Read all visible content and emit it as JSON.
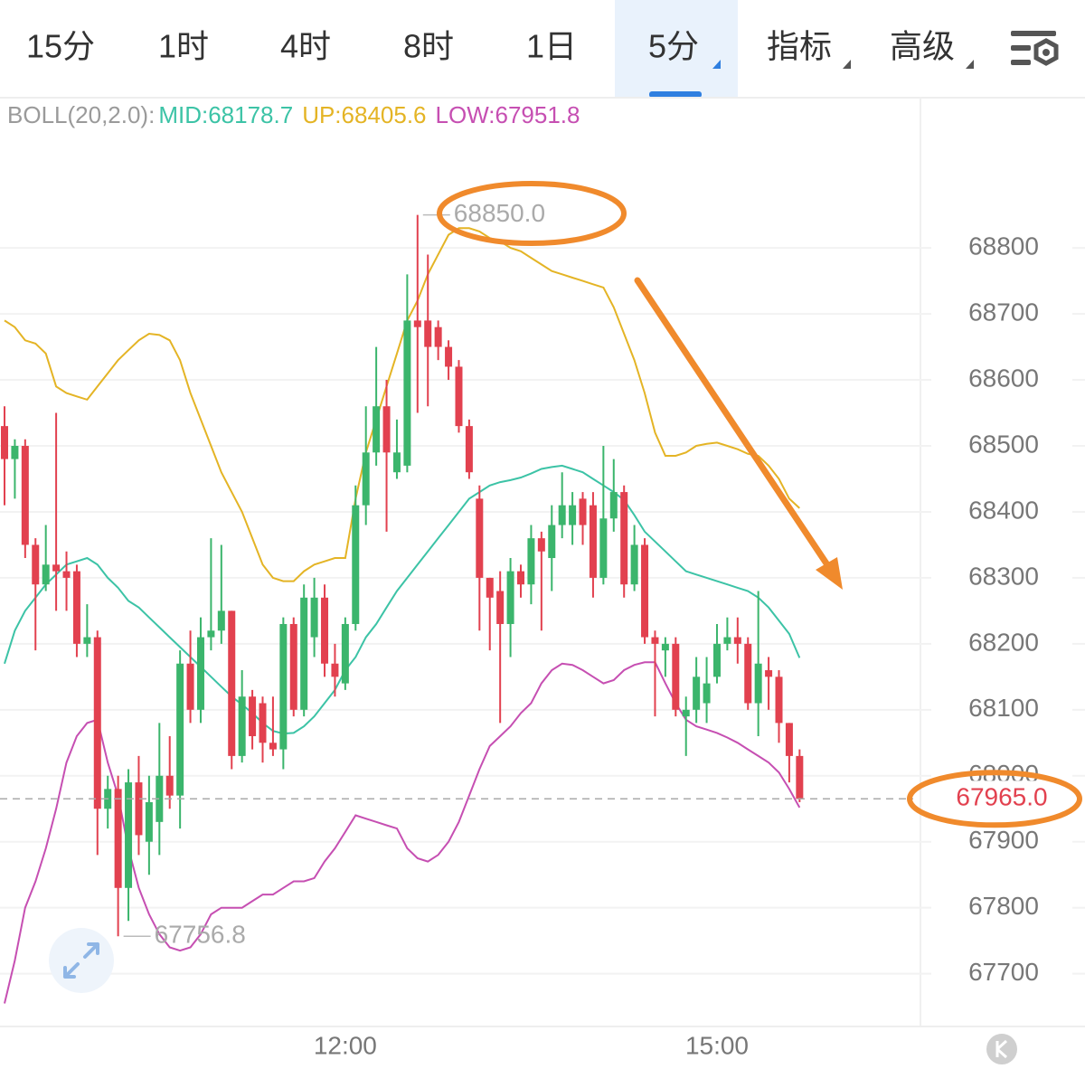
{
  "tabs": [
    "15分",
    "1时",
    "4时",
    "8时",
    "1日",
    "5分",
    "指标",
    "高级"
  ],
  "active_tab": 5,
  "chart_data": {
    "type": "candlestick",
    "categories": [
      null,
      null,
      null,
      null,
      null,
      null,
      null,
      null,
      null,
      null,
      null,
      null,
      null,
      null,
      null,
      null,
      null,
      null,
      null,
      null,
      null,
      null,
      null,
      null,
      null,
      null,
      null,
      null,
      null,
      null,
      null,
      null,
      null,
      "12:00",
      null,
      null,
      null,
      null,
      null,
      null,
      null,
      null,
      null,
      null,
      null,
      null,
      null,
      null,
      null,
      null,
      null,
      null,
      null,
      null,
      null,
      null,
      null,
      null,
      null,
      null,
      null,
      null,
      null,
      null,
      null,
      null,
      null,
      null,
      null,
      "15:00",
      null,
      null,
      null,
      null,
      null,
      null,
      null,
      null
    ],
    "open": [
      68530,
      68480,
      68500,
      68350,
      68290,
      68320,
      68310,
      68310,
      68200,
      68210,
      67950,
      67980,
      67830,
      67990,
      67900,
      67930,
      68000,
      67970,
      68170,
      68100,
      68210,
      68220,
      68250,
      68030,
      68120,
      68110,
      68050,
      68040,
      68230,
      68100,
      68210,
      68270,
      68170,
      68140,
      68230,
      68410,
      68490,
      68560,
      68460,
      68470,
      68690,
      68690,
      68680,
      68650,
      68620,
      68530,
      68420,
      68300,
      68280,
      68230,
      68310,
      68290,
      68360,
      68330,
      68380,
      68380,
      68420,
      68410,
      68300,
      68390,
      68430,
      68290,
      68350,
      68210,
      68190,
      68200,
      68090,
      68100,
      68110,
      68150,
      68200,
      68210,
      68200,
      68110,
      68160,
      68150,
      68080,
      68030
    ],
    "high": [
      68560,
      68510,
      68510,
      68360,
      68380,
      68550,
      68340,
      68320,
      68260,
      68220,
      68000,
      68000,
      68010,
      68030,
      68000,
      68080,
      68060,
      68190,
      68220,
      68240,
      68360,
      68350,
      68250,
      68160,
      68130,
      68120,
      68120,
      68240,
      68240,
      68290,
      68300,
      68290,
      68200,
      68240,
      68440,
      68560,
      68650,
      68600,
      68540,
      68760,
      68850,
      68790,
      68690,
      68660,
      68630,
      68540,
      68440,
      68300,
      68310,
      68330,
      68320,
      68380,
      68370,
      68410,
      68460,
      68430,
      68430,
      68430,
      68500,
      68480,
      68440,
      68380,
      68360,
      68220,
      68210,
      68210,
      68120,
      68180,
      68180,
      68230,
      68240,
      68240,
      68210,
      68280,
      68180,
      68160,
      68080,
      68040
    ],
    "low": [
      68410,
      68420,
      68330,
      68190,
      68280,
      68250,
      68250,
      68180,
      68180,
      67880,
      67920,
      67756.8,
      67780,
      67880,
      67850,
      67880,
      67950,
      67920,
      68080,
      68080,
      68190,
      68200,
      68010,
      68020,
      68040,
      68020,
      68030,
      68010,
      68090,
      68090,
      68180,
      68150,
      68120,
      68130,
      68220,
      68380,
      68470,
      68370,
      68450,
      68460,
      68550,
      68560,
      68630,
      68600,
      68520,
      68450,
      68220,
      68190,
      68080,
      68180,
      68270,
      68260,
      68220,
      68280,
      68360,
      68350,
      68350,
      68270,
      68290,
      68370,
      68270,
      68280,
      68200,
      68090,
      68150,
      68090,
      68030,
      68080,
      68080,
      68140,
      68190,
      68170,
      68100,
      68060,
      68100,
      68050,
      67990,
      67960
    ],
    "close": [
      68480,
      68500,
      68350,
      68290,
      68320,
      68310,
      68300,
      68200,
      68210,
      67950,
      67980,
      67830,
      67990,
      67910,
      67960,
      68000,
      67970,
      68170,
      68100,
      68210,
      68220,
      68250,
      68030,
      68120,
      68060,
      68050,
      68040,
      68230,
      68100,
      68270,
      68270,
      68170,
      68150,
      68230,
      68410,
      68490,
      68560,
      68490,
      68490,
      68690,
      68680,
      68650,
      68650,
      68620,
      68530,
      68460,
      68300,
      68270,
      68230,
      68310,
      68290,
      68360,
      68340,
      68380,
      68410,
      68410,
      68380,
      68300,
      68390,
      68430,
      68290,
      68350,
      68210,
      68200,
      68200,
      68100,
      68100,
      68150,
      68140,
      68200,
      68210,
      68200,
      68110,
      68170,
      68150,
      68080,
      68030,
      67965
    ],
    "up_color": "#3bb56c",
    "down_color": "#e2414f",
    "indicator": {
      "label": "BOLL(20,2.0):",
      "label_color": "#9a9a9a",
      "series": [
        {
          "label": "MID:68178.7",
          "color": "#3cc3a6",
          "values": [
            68170,
            68220,
            68250,
            68270,
            68290,
            68305,
            68320,
            68325,
            68330,
            68320,
            68300,
            68285,
            68265,
            68255,
            68240,
            68225,
            68210,
            68195,
            68180,
            68165,
            68150,
            68135,
            68120,
            68108,
            68095,
            68080,
            68068,
            68064,
            68065,
            68075,
            68090,
            68110,
            68130,
            68160,
            68180,
            68210,
            68230,
            68255,
            68280,
            68300,
            68320,
            68340,
            68360,
            68380,
            68400,
            68420,
            68430,
            68440,
            68445,
            68448,
            68452,
            68458,
            68465,
            68468,
            68470,
            68465,
            68460,
            68450,
            68440,
            68430,
            68418,
            68395,
            68370,
            68355,
            68340,
            68325,
            68310,
            68305,
            68300,
            68295,
            68290,
            68285,
            68280,
            68270,
            68255,
            68235,
            68215,
            68178.7
          ]
        },
        {
          "label": "UP:68405.6",
          "color": "#e4b425",
          "values": [
            68690,
            68680,
            68660,
            68655,
            68640,
            68590,
            68580,
            68575,
            68570,
            68590,
            68610,
            68630,
            68645,
            68660,
            68670,
            68668,
            68660,
            68630,
            68580,
            68540,
            68500,
            68460,
            68430,
            68400,
            68360,
            68320,
            68300,
            68295,
            68295,
            68310,
            68320,
            68325,
            68330,
            68330,
            68420,
            68490,
            68540,
            68590,
            68640,
            68690,
            68720,
            68760,
            68790,
            68820,
            68830,
            68830,
            68825,
            68815,
            68810,
            68800,
            68795,
            68785,
            68775,
            68765,
            68760,
            68755,
            68750,
            68745,
            68740,
            68710,
            68670,
            68630,
            68580,
            68520,
            68485,
            68485,
            68490,
            68500,
            68503,
            68505,
            68500,
            68495,
            68488,
            68485,
            68470,
            68450,
            68420,
            68405.6
          ]
        },
        {
          "label": "LOW:67951.8",
          "color": "#c64fb2",
          "values": [
            67655,
            67720,
            67800,
            67840,
            67890,
            67950,
            68020,
            68060,
            68080,
            68085,
            68020,
            67970,
            67890,
            67830,
            67790,
            67760,
            67740,
            67735,
            67740,
            67760,
            67790,
            67800,
            67800,
            67800,
            67810,
            67820,
            67820,
            67830,
            67840,
            67840,
            67845,
            67870,
            67890,
            67915,
            67940,
            67935,
            67930,
            67925,
            67920,
            67890,
            67875,
            67870,
            67880,
            67900,
            67930,
            67970,
            68010,
            68045,
            68060,
            68075,
            68095,
            68110,
            68140,
            68160,
            68170,
            68168,
            68160,
            68150,
            68140,
            68145,
            68160,
            68168,
            68172,
            68172,
            68140,
            68110,
            68085,
            68075,
            68070,
            68065,
            68058,
            68050,
            68040,
            68030,
            68020,
            68005,
            67980,
            67951.8
          ]
        }
      ]
    },
    "max_marker": {
      "value": 68850,
      "label": "68850.0"
    },
    "min_marker": {
      "value": 67756.8,
      "label": "67756.8"
    },
    "last_price": {
      "value": 67965,
      "label": "67965.0",
      "color": "#e2414f"
    },
    "ylim": [
      67620,
      69025
    ],
    "yticks": [
      67700,
      67800,
      67900,
      68000,
      68100,
      68200,
      68300,
      68400,
      68500,
      68600,
      68700,
      68800
    ],
    "grid": true
  }
}
